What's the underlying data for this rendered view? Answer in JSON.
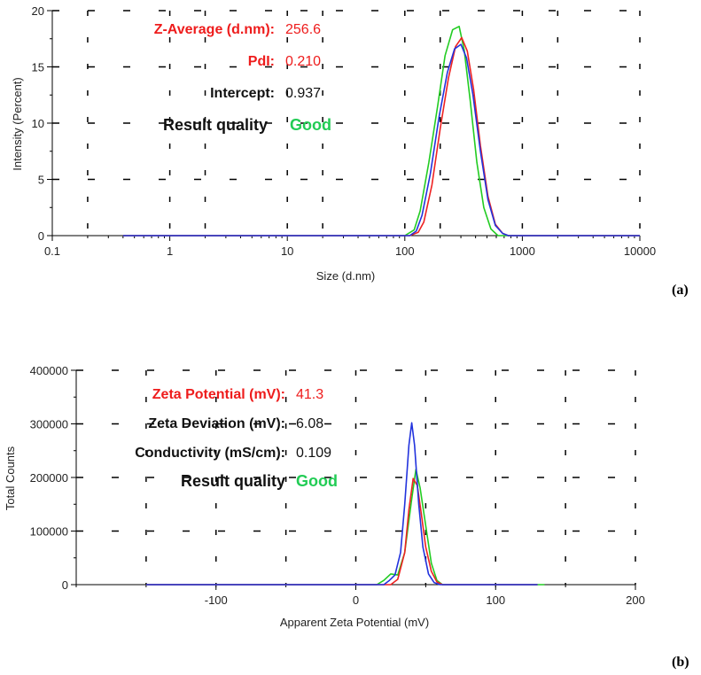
{
  "panels": [
    {
      "panel_label": "(a)",
      "annotations": [
        {
          "label": "Z-Average (d.nm):",
          "value": "256.6",
          "label_color": "#ee1c1c",
          "value_color": "#ee1c1c"
        },
        {
          "label": "PdI:",
          "value": "0.210",
          "label_color": "#ee1c1c",
          "value_color": "#ee1c1c"
        },
        {
          "label": "Intercept:",
          "value": "0.937",
          "label_color": "#111111",
          "value_color": "#111111"
        },
        {
          "label": "Result quality",
          "value": "Good",
          "label_color": "#111111",
          "value_color": "#22cc55"
        }
      ]
    },
    {
      "panel_label": "(b)",
      "annotations": [
        {
          "label": "Zeta Potential (mV):",
          "value": "41.3",
          "label_color": "#ee1c1c",
          "value_color": "#ee1c1c"
        },
        {
          "label": "Zeta Deviation (mV):",
          "value": "6.08",
          "label_color": "#111111",
          "value_color": "#111111"
        },
        {
          "label": "Conductivity (mS/cm):",
          "value": "0.109",
          "label_color": "#111111",
          "value_color": "#111111"
        },
        {
          "label": "Result quality",
          "value": "Good",
          "label_color": "#111111",
          "value_color": "#22cc55"
        }
      ]
    }
  ],
  "chart_data": [
    {
      "type": "line",
      "xscale": "log",
      "xlabel": "Size (d.nm)",
      "ylabel": "Intensity (Percent)",
      "xlim": [
        0.1,
        10000
      ],
      "ylim": [
        0,
        20
      ],
      "xticks": [
        0.1,
        1,
        10,
        100,
        1000,
        10000
      ],
      "xtick_labels": [
        "0.1",
        "1",
        "10",
        "100",
        "1000",
        "10000"
      ],
      "yticks": [
        0,
        5,
        10,
        15,
        20
      ],
      "ytick_labels": [
        "0",
        "5",
        "10",
        "15",
        "20"
      ],
      "grid": "dashed",
      "series": [
        {
          "color": "#22cc22",
          "x": [
            0.4,
            100,
            120,
            135,
            160,
            190,
            220,
            255,
            290,
            320,
            360,
            410,
            470,
            540,
            620,
            700,
            10000
          ],
          "y": [
            0,
            0,
            0.5,
            2.2,
            6.5,
            11.5,
            16.0,
            18.3,
            18.6,
            16.5,
            12.0,
            6.5,
            2.5,
            0.6,
            0,
            0,
            0
          ]
        },
        {
          "color": "#ee2222",
          "x": [
            0.4,
            110,
            130,
            145,
            170,
            200,
            235,
            270,
            305,
            340,
            385,
            440,
            510,
            590,
            680,
            760,
            10000
          ],
          "y": [
            0,
            0,
            0.3,
            1.2,
            4.5,
            9.5,
            14.0,
            16.8,
            17.6,
            16.4,
            13.0,
            8.0,
            3.5,
            1.0,
            0.2,
            0,
            0
          ]
        },
        {
          "color": "#2233dd",
          "x": [
            0.4,
            110,
            125,
            140,
            165,
            195,
            230,
            265,
            300,
            335,
            380,
            440,
            510,
            590,
            680,
            760,
            10000
          ],
          "y": [
            0,
            0,
            0.4,
            1.8,
            5.5,
            10.5,
            14.5,
            16.6,
            17.0,
            15.8,
            12.5,
            7.5,
            3.2,
            0.9,
            0.2,
            0,
            0
          ]
        }
      ]
    },
    {
      "type": "line",
      "xlabel": "Apparent Zeta Potential (mV)",
      "ylabel": "Total Counts",
      "xlim": [
        -200,
        200
      ],
      "ylim": [
        0,
        400000
      ],
      "xticks": [
        -100,
        0,
        100,
        200
      ],
      "xtick_labels": [
        "-100",
        "0",
        "100",
        "200"
      ],
      "yticks": [
        0,
        100000,
        200000,
        300000,
        400000
      ],
      "ytick_labels": [
        "0",
        "100000",
        "200000",
        "300000",
        "400000"
      ],
      "grid": "dashed",
      "series": [
        {
          "color": "#22cc22",
          "x": [
            -150,
            15,
            20,
            25,
            30,
            35,
            40,
            43,
            46,
            50,
            54,
            58,
            62,
            135
          ],
          "y": [
            0,
            0,
            8000,
            20000,
            18000,
            60000,
            160000,
            215000,
            180000,
            110000,
            40000,
            8000,
            0,
            0
          ]
        },
        {
          "color": "#ee2222",
          "x": [
            -150,
            25,
            30,
            35,
            38,
            41,
            44,
            47,
            50,
            54,
            58,
            62,
            130
          ],
          "y": [
            0,
            0,
            10000,
            60000,
            140000,
            198000,
            185000,
            130000,
            70000,
            25000,
            5000,
            0,
            0
          ]
        },
        {
          "color": "#2233dd",
          "x": [
            -150,
            20,
            24,
            28,
            32,
            35,
            38,
            40,
            42,
            45,
            48,
            52,
            56,
            60,
            130
          ],
          "y": [
            0,
            0,
            8000,
            18000,
            60000,
            150000,
            260000,
            302000,
            260000,
            150000,
            70000,
            20000,
            4000,
            0,
            0
          ]
        }
      ]
    }
  ]
}
